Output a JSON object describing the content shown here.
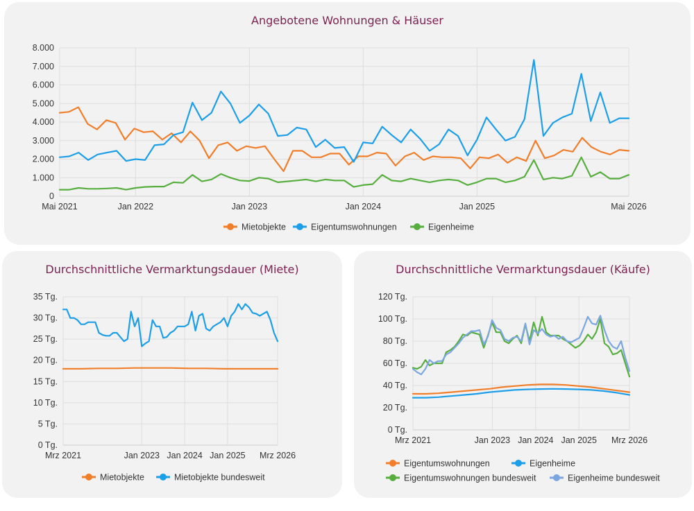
{
  "chart_data": [
    {
      "type": "line",
      "title": "Angebotene Wohnungen & Häuser",
      "ylim": [
        0,
        8000
      ],
      "yticks": [
        0,
        1000,
        2000,
        3000,
        4000,
        5000,
        6000,
        7000,
        8000
      ],
      "ytick_labels": [
        "0",
        "1.000",
        "2.000",
        "3.000",
        "4.000",
        "5.000",
        "6.000",
        "7.000",
        "8.000"
      ],
      "x_index_range": [
        0,
        60
      ],
      "xticks": [
        0,
        8,
        20,
        32,
        44,
        60
      ],
      "xtick_labels": [
        "Mai 2021",
        "Jan 2022",
        "Jan 2023",
        "Jan 2024",
        "Jan 2025",
        "Mai 2026"
      ],
      "grid": true,
      "legend": "bottom",
      "series": [
        {
          "name": "Mietobjekte",
          "color": "#f07e2b",
          "values": [
            4500,
            4550,
            4800,
            3900,
            3600,
            4100,
            3950,
            3050,
            3650,
            3450,
            3500,
            3050,
            3400,
            2900,
            3500,
            3000,
            2050,
            2750,
            2900,
            2450,
            2700,
            2600,
            2700,
            2000,
            1350,
            2450,
            2450,
            2100,
            2100,
            2300,
            2300,
            1700,
            2150,
            2150,
            2350,
            2300,
            1650,
            2150,
            2350,
            1950,
            2150,
            2100,
            2100,
            2050,
            1500,
            2100,
            2050,
            2250,
            1800,
            2100,
            1900,
            3000,
            2050,
            2200,
            2500,
            2400,
            3150,
            2650,
            2400,
            2250,
            2500,
            2450
          ]
        },
        {
          "name": "Eigentumswohnungen",
          "color": "#1c9ee8",
          "values": [
            2100,
            2150,
            2350,
            1950,
            2250,
            2350,
            2450,
            1900,
            2000,
            1950,
            2750,
            2800,
            3300,
            3450,
            5050,
            4100,
            4500,
            5650,
            5000,
            3950,
            4350,
            4950,
            4450,
            3250,
            3300,
            3700,
            3600,
            2650,
            3050,
            2600,
            2650,
            1850,
            2900,
            2850,
            3750,
            3300,
            2900,
            3600,
            3100,
            2450,
            2800,
            3600,
            3250,
            2200,
            3050,
            4250,
            3600,
            3000,
            3200,
            4150,
            7350,
            3250,
            3950,
            4250,
            4450,
            6600,
            4050,
            5600,
            3950,
            4200,
            4200
          ]
        },
        {
          "name": "Eigenheime",
          "color": "#57ae3e",
          "values": [
            350,
            350,
            450,
            400,
            400,
            420,
            450,
            350,
            450,
            500,
            520,
            520,
            750,
            720,
            1150,
            800,
            900,
            1200,
            1000,
            850,
            820,
            1000,
            950,
            750,
            800,
            850,
            900,
            800,
            900,
            850,
            850,
            500,
            600,
            650,
            1150,
            850,
            800,
            950,
            850,
            750,
            850,
            900,
            850,
            600,
            750,
            950,
            950,
            750,
            850,
            1050,
            1950,
            900,
            1000,
            950,
            1100,
            2100,
            1050,
            1300,
            950,
            950,
            1150
          ]
        }
      ]
    },
    {
      "type": "line",
      "title": "Durchschnittliche Vermarktungsdauer (Miete)",
      "ylim": [
        0,
        35
      ],
      "yticks": [
        0,
        5,
        10,
        15,
        20,
        25,
        30,
        35
      ],
      "ytick_labels": [
        "0 Tg.",
        "5 Tg.",
        "10 Tg.",
        "15 Tg.",
        "20 Tg.",
        "25 Tg.",
        "30 Tg.",
        "35 Tg."
      ],
      "x_index_range": [
        0,
        60
      ],
      "xticks": [
        0,
        22,
        34,
        46,
        60
      ],
      "xtick_labels": [
        "Mrz 2021",
        "Jan 2023",
        "Jan 2024",
        "Jan 2025",
        "Mrz 2026"
      ],
      "grid": true,
      "legend": "bottom",
      "series": [
        {
          "name": "Mietobjekte",
          "color": "#f07e2b",
          "values": [
            18.0,
            18.0,
            18.1,
            18.1,
            18.2,
            18.2,
            18.2,
            18.1,
            18.1,
            18.0,
            18.0,
            18.0,
            18.0
          ]
        },
        {
          "name": "Mietobjekte bundesweit",
          "color": "#1c9ee8",
          "values": [
            32,
            32,
            30,
            30,
            29.5,
            28.5,
            28.5,
            29,
            29,
            29,
            26.5,
            26,
            25.8,
            25.8,
            26.5,
            26.5,
            25.5,
            24.5,
            25,
            31.5,
            28,
            30,
            23.3,
            24,
            24.5,
            29.5,
            28,
            28,
            25.3,
            25.5,
            26.5,
            27,
            28,
            28,
            28,
            28.5,
            31.5,
            27,
            30.5,
            31,
            27.5,
            27,
            28,
            28.5,
            29,
            30,
            28,
            30.5,
            31.5,
            33.3,
            32,
            33.3,
            32.5,
            31.2,
            31,
            30.5,
            31,
            31.5,
            29.5,
            26.5,
            24.5
          ]
        }
      ]
    },
    {
      "type": "line",
      "title": "Durchschnittliche Vermarktungsdauer (Käufe)",
      "ylim": [
        0,
        120
      ],
      "yticks": [
        0,
        20,
        40,
        60,
        80,
        100,
        120
      ],
      "ytick_labels": [
        "0 Tg.",
        "20 Tg.",
        "40 Tg.",
        "60 Tg.",
        "80 Tg.",
        "100 Tg.",
        "120 Tg."
      ],
      "x_index_range": [
        0,
        60
      ],
      "xticks": [
        0,
        22,
        34,
        46,
        60
      ],
      "xtick_labels": [
        "Mrz 2021",
        "Jan 2023",
        "Jan 2024",
        "Jan 2025",
        "Mrz 2026"
      ],
      "grid": true,
      "legend": "bottom",
      "series": [
        {
          "name": "Eigentumswohnungen",
          "color": "#f07e2b",
          "values": [
            32.5,
            32.5,
            33,
            34,
            35,
            36,
            37,
            38.5,
            39.5,
            40.5,
            41,
            41,
            40.5,
            39.5,
            38.5,
            37,
            35.5,
            34
          ]
        },
        {
          "name": "Eigenheime",
          "color": "#1c9ee8",
          "values": [
            29,
            29,
            29.5,
            30.5,
            31.5,
            32.5,
            34,
            35,
            36,
            36.5,
            36.8,
            37,
            36.8,
            36.5,
            36,
            35,
            33.5,
            31.5
          ]
        },
        {
          "name": "Eigentumswohnungen bundesweit",
          "color": "#57ae3e",
          "values": [
            56,
            55,
            57,
            63,
            58,
            60,
            60,
            60,
            70,
            72,
            75,
            80,
            86,
            85,
            88,
            87,
            86,
            74,
            85,
            97,
            88,
            88,
            80,
            78,
            82,
            85,
            78,
            95,
            80,
            97,
            85,
            102,
            88,
            85,
            85,
            85,
            82,
            80,
            77,
            74,
            76,
            80,
            86,
            82,
            88,
            100,
            78,
            75,
            68,
            69,
            72,
            60,
            48
          ]
        },
        {
          "name": "Eigenheime bundesweit",
          "color": "#7ba6e0",
          "values": [
            55,
            52,
            50,
            55,
            63,
            60,
            62,
            62,
            68,
            70,
            74,
            78,
            83,
            86,
            89,
            89,
            90,
            77,
            84,
            99,
            92,
            90,
            82,
            80,
            83,
            84,
            80,
            96,
            77,
            90,
            87,
            91,
            86,
            84,
            85,
            82,
            84,
            80,
            79,
            81,
            83,
            92,
            102,
            96,
            95,
            103,
            90,
            80,
            75,
            73,
            80,
            65,
            53
          ]
        }
      ]
    }
  ]
}
